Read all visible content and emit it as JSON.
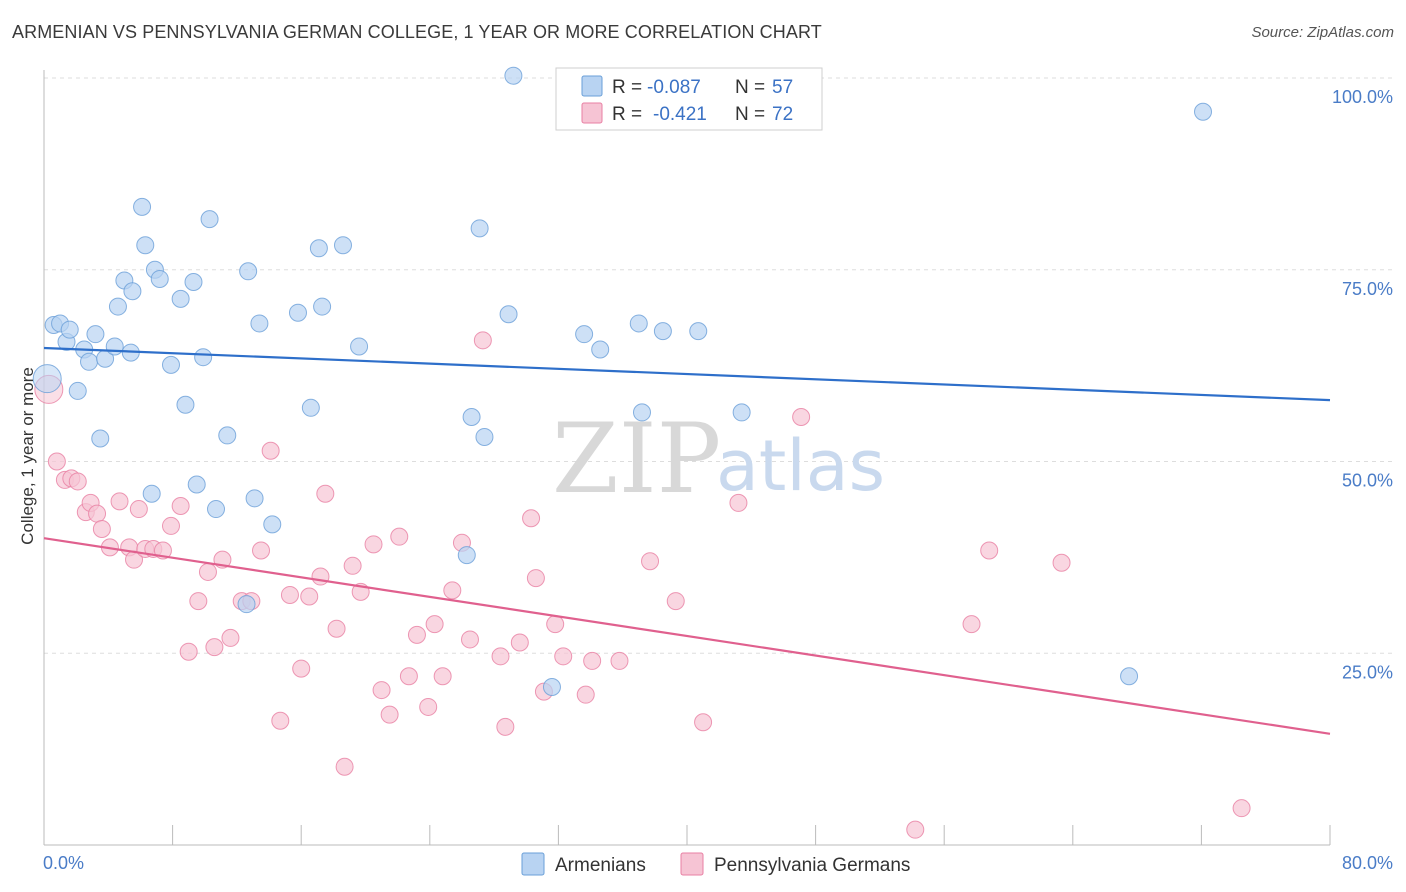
{
  "title": "ARMENIAN VS PENNSYLVANIA GERMAN COLLEGE, 1 YEAR OR MORE CORRELATION CHART",
  "source": "Source: ZipAtlas.com",
  "watermark": {
    "zip": "ZIP",
    "atlas": "atlas"
  },
  "colors": {
    "blue": "#6a9fd8",
    "blue_fill": "#b8d3f2",
    "pink": "#e87fa3",
    "pink_fill": "#f6c4d4",
    "blue_line": "#2e6fca",
    "pink_line": "#e0608e"
  },
  "legend": {
    "armenians": {
      "r_label": "R =",
      "r_value": "-0.087",
      "n_label": "N =",
      "n_value": "57"
    },
    "pa_germans": {
      "r_label": "R =",
      "r_value": "-0.421",
      "n_label": "N =",
      "n_value": "72"
    }
  },
  "bottom_legend": {
    "armenians": "Armenians",
    "pa_germans": "Pennsylvania Germans"
  },
  "chart_data": {
    "type": "scatter",
    "xlabel": "",
    "ylabel": "College, 1 year or more",
    "xlim": [
      0,
      80
    ],
    "ylim": [
      0,
      102
    ],
    "x_tick_labels": {
      "min": "0.0%",
      "max": "80.0%"
    },
    "y_ticks": [
      25,
      50,
      75,
      100
    ],
    "y_tick_labels": [
      "25.0%",
      "50.0%",
      "75.0%",
      "100.0%"
    ],
    "series": [
      {
        "name": "Armenians",
        "trend": {
          "x": [
            0,
            80
          ],
          "y": [
            64.8,
            58.0
          ]
        },
        "points": [
          [
            0.2,
            60.8
          ],
          [
            0.6,
            67.8
          ],
          [
            1.0,
            68.0
          ],
          [
            1.4,
            65.6
          ],
          [
            1.6,
            67.2
          ],
          [
            2.1,
            59.2
          ],
          [
            2.5,
            64.6
          ],
          [
            2.8,
            63.0
          ],
          [
            3.2,
            66.6
          ],
          [
            3.5,
            53.0
          ],
          [
            3.8,
            63.4
          ],
          [
            4.4,
            65.0
          ],
          [
            4.6,
            70.2
          ],
          [
            5.0,
            73.6
          ],
          [
            5.5,
            72.2
          ],
          [
            5.4,
            64.2
          ],
          [
            6.1,
            83.2
          ],
          [
            6.3,
            78.2
          ],
          [
            6.7,
            45.8
          ],
          [
            6.9,
            75.0
          ],
          [
            7.2,
            73.8
          ],
          [
            7.9,
            62.6
          ],
          [
            8.5,
            71.2
          ],
          [
            8.8,
            57.4
          ],
          [
            9.3,
            73.4
          ],
          [
            9.5,
            47.0
          ],
          [
            9.9,
            63.6
          ],
          [
            10.3,
            81.6
          ],
          [
            10.7,
            43.8
          ],
          [
            11.4,
            53.4
          ],
          [
            12.6,
            31.4
          ],
          [
            12.7,
            74.8
          ],
          [
            13.1,
            45.2
          ],
          [
            13.4,
            68.0
          ],
          [
            14.2,
            41.8
          ],
          [
            15.8,
            69.4
          ],
          [
            16.6,
            57.0
          ],
          [
            17.1,
            77.8
          ],
          [
            17.3,
            70.2
          ],
          [
            18.6,
            78.2
          ],
          [
            19.6,
            65.0
          ],
          [
            26.3,
            37.8
          ],
          [
            26.6,
            55.8
          ],
          [
            27.1,
            80.4
          ],
          [
            27.4,
            53.2
          ],
          [
            28.9,
            69.2
          ],
          [
            29.2,
            100.3
          ],
          [
            31.6,
            20.6
          ],
          [
            33.6,
            66.6
          ],
          [
            34.6,
            64.6
          ],
          [
            37.0,
            68.0
          ],
          [
            37.2,
            56.4
          ],
          [
            38.5,
            67.0
          ],
          [
            40.7,
            67.0
          ],
          [
            43.4,
            56.4
          ],
          [
            67.5,
            22.0
          ],
          [
            72.1,
            95.6
          ]
        ]
      },
      {
        "name": "Pennsylvania Germans",
        "trend": {
          "x": [
            0,
            80
          ],
          "y": [
            40.0,
            14.5
          ]
        },
        "points": [
          [
            0.3,
            59.4
          ],
          [
            0.8,
            50.0
          ],
          [
            1.3,
            47.6
          ],
          [
            1.7,
            47.8
          ],
          [
            2.1,
            47.4
          ],
          [
            2.6,
            43.4
          ],
          [
            2.9,
            44.6
          ],
          [
            3.3,
            43.2
          ],
          [
            3.6,
            41.2
          ],
          [
            4.1,
            38.8
          ],
          [
            4.7,
            44.8
          ],
          [
            5.3,
            38.8
          ],
          [
            5.6,
            37.2
          ],
          [
            5.9,
            43.8
          ],
          [
            6.3,
            38.6
          ],
          [
            6.8,
            38.6
          ],
          [
            7.4,
            38.4
          ],
          [
            7.9,
            41.6
          ],
          [
            8.5,
            44.2
          ],
          [
            9.0,
            25.2
          ],
          [
            9.6,
            31.8
          ],
          [
            10.2,
            35.6
          ],
          [
            10.6,
            25.8
          ],
          [
            11.1,
            37.2
          ],
          [
            11.6,
            27.0
          ],
          [
            12.3,
            31.8
          ],
          [
            12.9,
            31.8
          ],
          [
            13.5,
            38.4
          ],
          [
            14.1,
            51.4
          ],
          [
            14.7,
            16.2
          ],
          [
            15.3,
            32.6
          ],
          [
            16.0,
            23.0
          ],
          [
            16.5,
            32.4
          ],
          [
            17.2,
            35.0
          ],
          [
            17.5,
            45.8
          ],
          [
            18.2,
            28.2
          ],
          [
            18.7,
            10.2
          ],
          [
            19.2,
            36.4
          ],
          [
            19.7,
            33.0
          ],
          [
            20.5,
            39.2
          ],
          [
            21.0,
            20.2
          ],
          [
            21.5,
            17.0
          ],
          [
            22.1,
            40.2
          ],
          [
            22.7,
            22.0
          ],
          [
            23.2,
            27.4
          ],
          [
            23.9,
            18.0
          ],
          [
            24.3,
            28.8
          ],
          [
            24.8,
            22.0
          ],
          [
            25.4,
            33.2
          ],
          [
            26.0,
            39.4
          ],
          [
            26.5,
            26.8
          ],
          [
            27.3,
            65.8
          ],
          [
            28.4,
            24.6
          ],
          [
            28.7,
            15.4
          ],
          [
            29.6,
            26.4
          ],
          [
            30.3,
            42.6
          ],
          [
            30.6,
            34.8
          ],
          [
            31.1,
            20.0
          ],
          [
            31.8,
            28.8
          ],
          [
            32.3,
            24.6
          ],
          [
            33.7,
            19.6
          ],
          [
            34.1,
            24.0
          ],
          [
            35.8,
            24.0
          ],
          [
            37.7,
            37.0
          ],
          [
            39.3,
            31.8
          ],
          [
            41.0,
            16.0
          ],
          [
            43.2,
            44.6
          ],
          [
            47.1,
            55.8
          ],
          [
            54.2,
            2.0
          ],
          [
            57.7,
            28.8
          ],
          [
            58.8,
            38.4
          ],
          [
            63.3,
            36.8
          ],
          [
            74.5,
            4.8
          ]
        ]
      }
    ]
  }
}
